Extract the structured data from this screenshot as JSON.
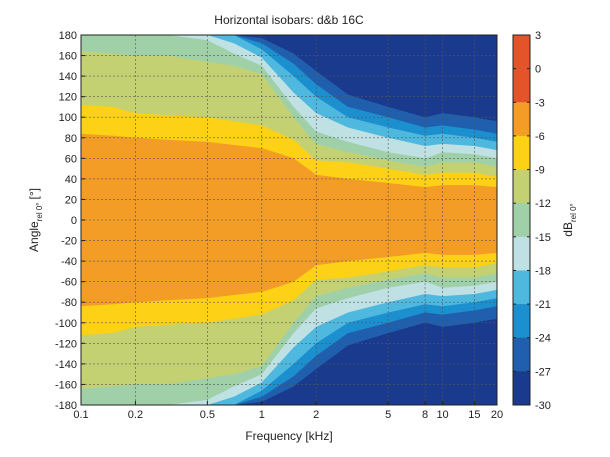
{
  "chart_data": {
    "type": "heatmap",
    "title": "Horizontal isobars: d&b  16C",
    "xlabel": "Frequency [kHz]",
    "ylabel": {
      "main": "Angle",
      "sub": "rel 0°",
      "unit": "[°]"
    },
    "xscale": "log",
    "xlim": [
      0.1,
      20
    ],
    "x_ticks": [
      0.1,
      0.2,
      0.5,
      1,
      2,
      5,
      8,
      10,
      15,
      20
    ],
    "x_tick_labels": [
      "0.1",
      "0.2",
      "0.5",
      "1",
      "2",
      "5",
      "8",
      "10",
      "15",
      "20"
    ],
    "ylim": [
      -180,
      180
    ],
    "y_ticks": [
      180,
      160,
      140,
      120,
      100,
      80,
      60,
      40,
      20,
      0,
      -20,
      -40,
      -60,
      -80,
      -100,
      -120,
      -140,
      -160,
      -180
    ],
    "grid": true,
    "colorbar": {
      "label": {
        "main": "dB",
        "sub": "rel 0°"
      },
      "ticks": [
        3,
        0,
        -3,
        -6,
        -9,
        -12,
        -15,
        -18,
        -21,
        -24,
        -27,
        -30
      ],
      "bands": [
        {
          "from": 0,
          "to": 3,
          "color": "#e4542a"
        },
        {
          "from": -3,
          "to": 0,
          "color": "#e4542a"
        },
        {
          "from": -6,
          "to": -3,
          "color": "#f39c26"
        },
        {
          "from": -9,
          "to": -6,
          "color": "#fcd116"
        },
        {
          "from": -12,
          "to": -9,
          "color": "#c3d173"
        },
        {
          "from": -15,
          "to": -12,
          "color": "#9fd0a8"
        },
        {
          "from": -18,
          "to": -15,
          "color": "#c0e1e3"
        },
        {
          "from": -21,
          "to": -18,
          "color": "#4fb8df"
        },
        {
          "from": -24,
          "to": -21,
          "color": "#1c8fcf"
        },
        {
          "from": -27,
          "to": -24,
          "color": "#1f5fad"
        },
        {
          "from": -30,
          "to": -27,
          "color": "#1a3a8d"
        }
      ]
    },
    "contours_upper_half_angle_deg": {
      "freq_khz": [
        0.1,
        0.15,
        0.2,
        0.3,
        0.5,
        0.7,
        1,
        1.5,
        2,
        3,
        5,
        8,
        10,
        15,
        20
      ],
      "levels": [
        {
          "level_db": -3,
          "angle": [
            84,
            82,
            80,
            78,
            76,
            73,
            70,
            60,
            44,
            40,
            36,
            32,
            34,
            34,
            32
          ]
        },
        {
          "level_db": -6,
          "angle": [
            112,
            110,
            104,
            102,
            100,
            96,
            92,
            78,
            58,
            56,
            50,
            44,
            46,
            46,
            42
          ]
        },
        {
          "level_db": -9,
          "angle": [
            164,
            162,
            160,
            160,
            154,
            150,
            142,
            100,
            74,
            66,
            58,
            52,
            56,
            56,
            52
          ]
        },
        {
          "level_db": -12,
          "angle": [
            180,
            180,
            180,
            180,
            175,
            162,
            150,
            110,
            86,
            76,
            66,
            60,
            66,
            64,
            60
          ]
        },
        {
          "level_db": -15,
          "angle": [
            180,
            180,
            180,
            180,
            180,
            172,
            158,
            124,
            104,
            90,
            80,
            72,
            74,
            72,
            68
          ]
        },
        {
          "level_db": -18,
          "angle": [
            180,
            180,
            180,
            180,
            180,
            180,
            166,
            140,
            120,
            100,
            90,
            82,
            84,
            80,
            76
          ]
        },
        {
          "level_db": -21,
          "angle": [
            180,
            180,
            180,
            180,
            180,
            180,
            172,
            152,
            132,
            110,
            100,
            90,
            92,
            88,
            84
          ]
        },
        {
          "level_db": -24,
          "angle": [
            180,
            180,
            180,
            180,
            180,
            180,
            177,
            162,
            145,
            122,
            110,
            100,
            104,
            100,
            96
          ]
        },
        {
          "level_db": -27,
          "angle": [
            180,
            180,
            180,
            180,
            180,
            180,
            180,
            168,
            160,
            136,
            126,
            116,
            118,
            114,
            110
          ]
        }
      ]
    }
  }
}
